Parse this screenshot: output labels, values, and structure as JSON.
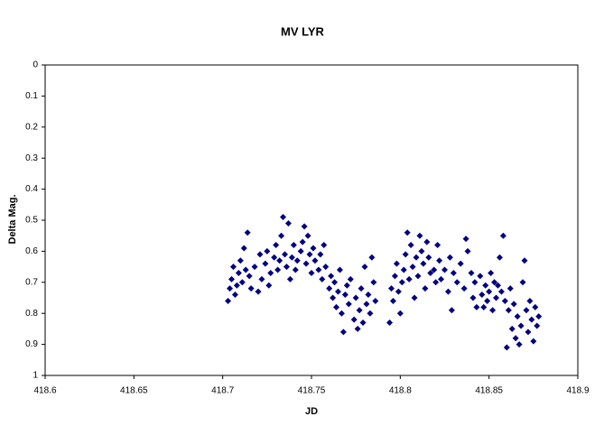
{
  "chart_data": {
    "type": "scatter",
    "title": "MV LYR",
    "x_label": "JD",
    "y_label": "Delta Mag.",
    "xlim": [
      418.6,
      418.9
    ],
    "xticks": [
      418.6,
      418.65,
      418.7,
      418.75,
      418.8,
      418.85,
      418.9
    ],
    "ylim": [
      0,
      1
    ],
    "yticks": [
      0,
      0.1,
      0.2,
      0.3,
      0.4,
      0.5,
      0.6,
      0.7,
      0.8,
      0.9,
      1
    ],
    "y_inverted": true,
    "grid": false,
    "series": [
      {
        "color": "#000080",
        "x": [
          418.703,
          418.704,
          418.705,
          418.706,
          418.707,
          418.708,
          418.709,
          418.71,
          418.711,
          418.712,
          418.713,
          418.714,
          418.715,
          418.716,
          418.718,
          418.72,
          418.721,
          418.722,
          418.724,
          418.725,
          418.726,
          418.727,
          418.729,
          418.73,
          418.731,
          418.732,
          418.733,
          418.734,
          418.735,
          418.736,
          418.737,
          418.738,
          418.739,
          418.74,
          418.741,
          418.742,
          418.744,
          418.745,
          418.746,
          418.747,
          418.748,
          418.749,
          418.75,
          418.751,
          418.752,
          418.754,
          418.755,
          418.756,
          418.757,
          418.758,
          418.76,
          418.761,
          418.762,
          418.763,
          418.764,
          418.765,
          418.766,
          418.767,
          418.768,
          418.769,
          418.77,
          418.771,
          418.772,
          418.774,
          418.775,
          418.776,
          418.777,
          418.778,
          418.779,
          418.78,
          418.781,
          418.782,
          418.783,
          418.784,
          418.785,
          418.786,
          418.794,
          418.795,
          418.796,
          418.797,
          418.798,
          418.799,
          418.8,
          418.801,
          418.802,
          418.803,
          418.804,
          418.805,
          418.806,
          418.807,
          418.808,
          418.809,
          418.81,
          418.811,
          418.812,
          418.813,
          418.814,
          418.815,
          418.816,
          418.817,
          418.819,
          418.82,
          418.821,
          418.822,
          418.823,
          418.825,
          418.827,
          418.828,
          418.829,
          418.83,
          418.832,
          418.834,
          418.836,
          418.837,
          418.838,
          418.84,
          418.841,
          418.842,
          418.843,
          418.845,
          418.846,
          418.847,
          418.848,
          418.849,
          418.85,
          418.851,
          418.852,
          418.853,
          418.854,
          418.855,
          418.856,
          418.857,
          418.858,
          418.859,
          418.86,
          418.861,
          418.862,
          418.863,
          418.864,
          418.865,
          418.866,
          418.867,
          418.868,
          418.869,
          418.87,
          418.871,
          418.872,
          418.873,
          418.874,
          418.875,
          418.876,
          418.877,
          418.878
        ],
        "values": [
          0.76,
          0.72,
          0.69,
          0.65,
          0.74,
          0.71,
          0.67,
          0.63,
          0.7,
          0.59,
          0.66,
          0.54,
          0.68,
          0.72,
          0.65,
          0.73,
          0.61,
          0.69,
          0.64,
          0.6,
          0.71,
          0.67,
          0.62,
          0.58,
          0.66,
          0.63,
          0.55,
          0.49,
          0.61,
          0.65,
          0.51,
          0.69,
          0.62,
          0.58,
          0.66,
          0.63,
          0.6,
          0.57,
          0.52,
          0.64,
          0.55,
          0.61,
          0.67,
          0.59,
          0.63,
          0.66,
          0.61,
          0.69,
          0.58,
          0.65,
          0.72,
          0.68,
          0.75,
          0.7,
          0.78,
          0.73,
          0.66,
          0.8,
          0.86,
          0.74,
          0.71,
          0.77,
          0.69,
          0.82,
          0.75,
          0.85,
          0.79,
          0.72,
          0.83,
          0.65,
          0.77,
          0.74,
          0.8,
          0.62,
          0.7,
          0.76,
          0.83,
          0.72,
          0.76,
          0.68,
          0.64,
          0.73,
          0.8,
          0.7,
          0.66,
          0.61,
          0.54,
          0.69,
          0.58,
          0.65,
          0.75,
          0.62,
          0.68,
          0.55,
          0.6,
          0.64,
          0.72,
          0.57,
          0.62,
          0.67,
          0.66,
          0.7,
          0.58,
          0.63,
          0.69,
          0.66,
          0.73,
          0.62,
          0.79,
          0.67,
          0.7,
          0.64,
          0.72,
          0.56,
          0.6,
          0.67,
          0.75,
          0.7,
          0.78,
          0.68,
          0.74,
          0.78,
          0.71,
          0.76,
          0.73,
          0.67,
          0.79,
          0.7,
          0.75,
          0.71,
          0.62,
          0.73,
          0.55,
          0.76,
          0.91,
          0.79,
          0.72,
          0.85,
          0.77,
          0.88,
          0.81,
          0.9,
          0.84,
          0.7,
          0.63,
          0.79,
          0.86,
          0.76,
          0.82,
          0.89,
          0.78,
          0.84,
          0.81
        ]
      }
    ]
  }
}
